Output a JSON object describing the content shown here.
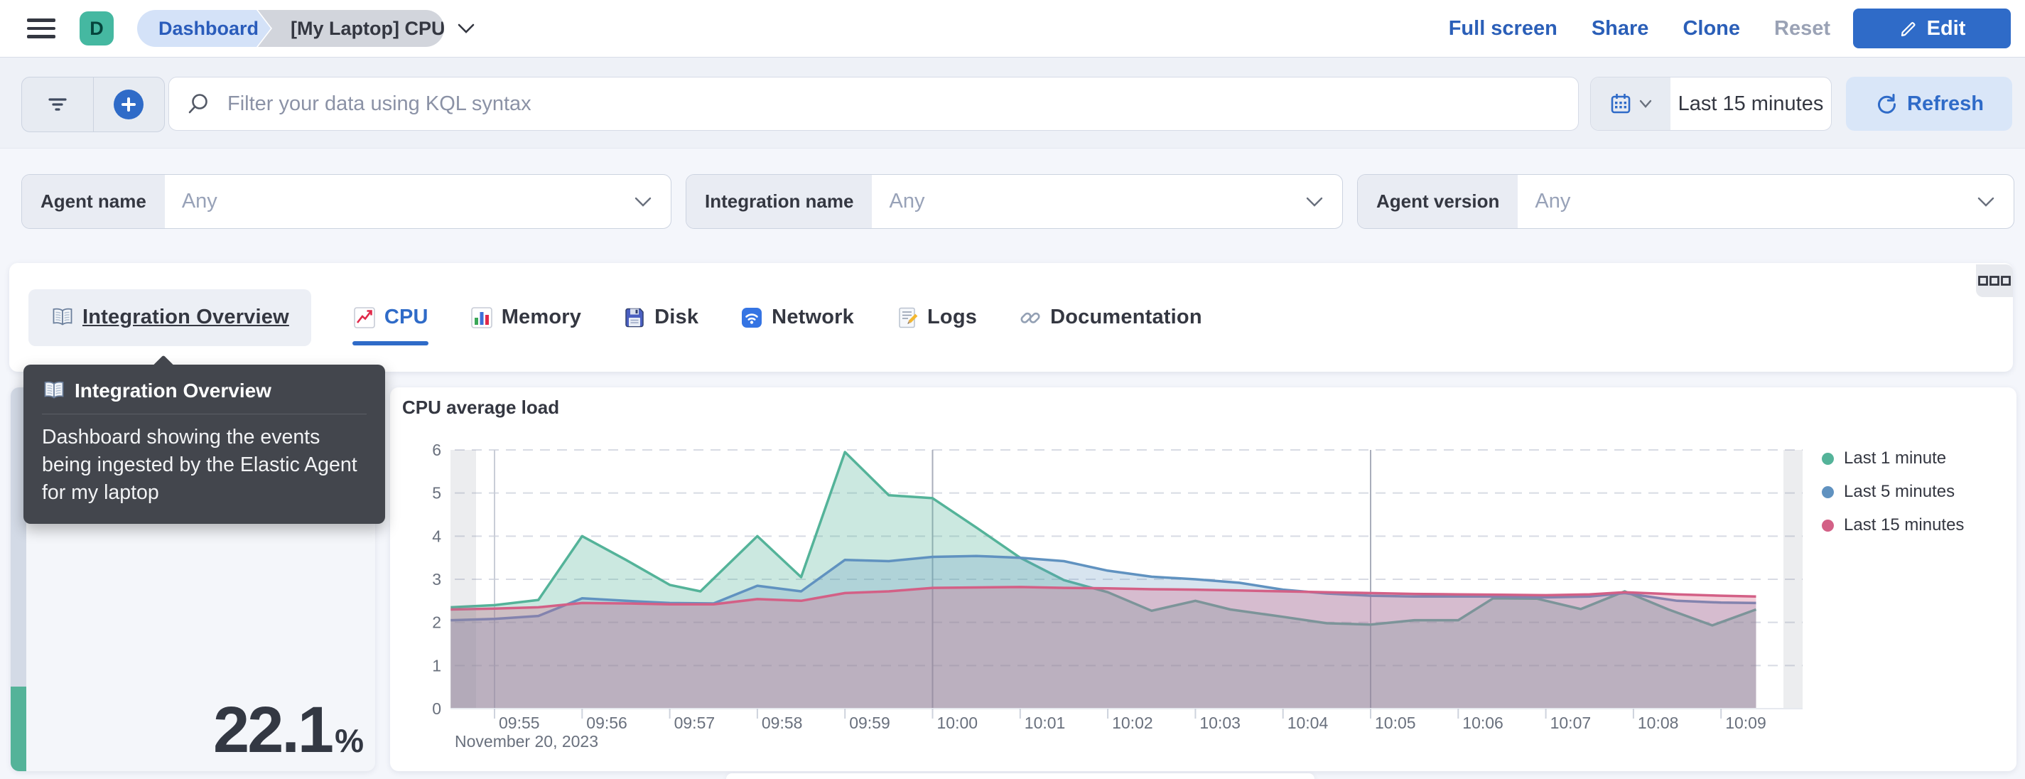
{
  "header": {
    "avatar_text": "D",
    "breadcrumbs": [
      {
        "label": "Dashboard"
      },
      {
        "label": "[My Laptop] CPU"
      }
    ],
    "actions": [
      {
        "label": "Full screen",
        "enabled": true
      },
      {
        "label": "Share",
        "enabled": true
      },
      {
        "label": "Clone",
        "enabled": true
      },
      {
        "label": "Reset",
        "enabled": false
      }
    ],
    "edit_button": "Edit"
  },
  "query_bar": {
    "search_placeholder": "Filter your data using KQL syntax",
    "time_range": "Last 15 minutes",
    "refresh_label": "Refresh"
  },
  "controls": [
    {
      "label": "Agent name",
      "value": "Any"
    },
    {
      "label": "Integration name",
      "value": "Any"
    },
    {
      "label": "Agent version",
      "value": "Any"
    }
  ],
  "tabs": [
    {
      "label": "Integration Overview",
      "icon": "book-icon",
      "state": "hover"
    },
    {
      "label": "CPU",
      "icon": "chart-line-icon",
      "state": "active"
    },
    {
      "label": "Memory",
      "icon": "bar-chart-icon",
      "state": "normal"
    },
    {
      "label": "Disk",
      "icon": "floppy-icon",
      "state": "normal"
    },
    {
      "label": "Network",
      "icon": "wifi-icon",
      "state": "normal"
    },
    {
      "label": "Logs",
      "icon": "memo-icon",
      "state": "normal"
    },
    {
      "label": "Documentation",
      "icon": "link-icon",
      "state": "normal"
    }
  ],
  "tab_tooltip": {
    "title": "Integration Overview",
    "body": "Dashboard showing the events being ingested by the Elastic Agent for my laptop"
  },
  "metric_panel": {
    "value": "22.1",
    "unit": "%",
    "fill_percent": 22.1,
    "bar_color": "#54B399",
    "track_color": "#D3DAE6"
  },
  "colors": {
    "accent_blue": "#2f6bc8",
    "link_blue": "#2b5fb8",
    "teal": "#54B399"
  },
  "chart_data": {
    "type": "area",
    "title": "CPU average load",
    "date_label": "November 20, 2023",
    "x_ticks": [
      "09:55",
      "09:56",
      "09:57",
      "09:58",
      "09:59",
      "10:00",
      "10:01",
      "10:02",
      "10:03",
      "10:04",
      "10:05",
      "10:06",
      "10:07",
      "10:08",
      "10:09"
    ],
    "x_unit": "minutes after 09:55",
    "ylim": [
      0,
      6
    ],
    "y_ticks": [
      0,
      1,
      2,
      3,
      4,
      5,
      6
    ],
    "grid_minutes": [
      0,
      5,
      10
    ],
    "legend_position": "right",
    "series": [
      {
        "name": "Last 1 minute",
        "color": "#54B399",
        "fill_opacity": 0.3,
        "points": [
          [
            -0.5,
            2.35
          ],
          [
            0,
            2.4
          ],
          [
            0.5,
            2.52
          ],
          [
            1,
            4.0
          ],
          [
            1.5,
            3.45
          ],
          [
            2,
            2.87
          ],
          [
            2.35,
            2.72
          ],
          [
            3,
            4.0
          ],
          [
            3.5,
            3.05
          ],
          [
            4,
            5.95
          ],
          [
            4.5,
            4.95
          ],
          [
            5,
            4.88
          ],
          [
            5.5,
            4.2
          ],
          [
            6,
            3.5
          ],
          [
            6.5,
            2.98
          ],
          [
            7,
            2.7
          ],
          [
            7.5,
            2.27
          ],
          [
            8,
            2.5
          ],
          [
            8.4,
            2.3
          ],
          [
            9,
            2.13
          ],
          [
            9.5,
            1.98
          ],
          [
            10,
            1.95
          ],
          [
            10.5,
            2.05
          ],
          [
            11,
            2.05
          ],
          [
            11.4,
            2.56
          ],
          [
            11.9,
            2.55
          ],
          [
            12.4,
            2.31
          ],
          [
            12.9,
            2.72
          ],
          [
            13.4,
            2.3
          ],
          [
            13.9,
            1.93
          ],
          [
            14.4,
            2.3
          ]
        ]
      },
      {
        "name": "Last 5 minutes",
        "color": "#6092C0",
        "fill_opacity": 0.25,
        "points": [
          [
            -0.5,
            2.05
          ],
          [
            0,
            2.08
          ],
          [
            0.5,
            2.15
          ],
          [
            1,
            2.56
          ],
          [
            1.5,
            2.5
          ],
          [
            2,
            2.45
          ],
          [
            2.5,
            2.44
          ],
          [
            3,
            2.85
          ],
          [
            3.5,
            2.72
          ],
          [
            4,
            3.45
          ],
          [
            4.5,
            3.42
          ],
          [
            5,
            3.52
          ],
          [
            5.5,
            3.54
          ],
          [
            6,
            3.5
          ],
          [
            6.5,
            3.42
          ],
          [
            7,
            3.2
          ],
          [
            7.5,
            3.06
          ],
          [
            8,
            3.0
          ],
          [
            8.5,
            2.92
          ],
          [
            9,
            2.76
          ],
          [
            9.5,
            2.67
          ],
          [
            10,
            2.62
          ],
          [
            10.5,
            2.6
          ],
          [
            11,
            2.6
          ],
          [
            11.5,
            2.6
          ],
          [
            12,
            2.58
          ],
          [
            12.5,
            2.6
          ],
          [
            12.9,
            2.68
          ],
          [
            13.5,
            2.5
          ],
          [
            14,
            2.46
          ],
          [
            14.4,
            2.45
          ]
        ]
      },
      {
        "name": "Last 15 minutes",
        "color": "#D36086",
        "fill_opacity": 0.3,
        "points": [
          [
            -0.5,
            2.3
          ],
          [
            0,
            2.32
          ],
          [
            0.5,
            2.35
          ],
          [
            1,
            2.45
          ],
          [
            1.5,
            2.44
          ],
          [
            2,
            2.42
          ],
          [
            2.5,
            2.42
          ],
          [
            3,
            2.54
          ],
          [
            3.5,
            2.5
          ],
          [
            4,
            2.68
          ],
          [
            4.5,
            2.72
          ],
          [
            5,
            2.8
          ],
          [
            5.5,
            2.81
          ],
          [
            6,
            2.82
          ],
          [
            6.5,
            2.8
          ],
          [
            7,
            2.79
          ],
          [
            7.5,
            2.77
          ],
          [
            8,
            2.76
          ],
          [
            8.5,
            2.74
          ],
          [
            9,
            2.72
          ],
          [
            9.5,
            2.7
          ],
          [
            10,
            2.68
          ],
          [
            10.5,
            2.66
          ],
          [
            11,
            2.65
          ],
          [
            11.5,
            2.64
          ],
          [
            12,
            2.63
          ],
          [
            12.5,
            2.65
          ],
          [
            12.9,
            2.7
          ],
          [
            13.5,
            2.65
          ],
          [
            14,
            2.62
          ],
          [
            14.4,
            2.6
          ]
        ]
      }
    ]
  }
}
